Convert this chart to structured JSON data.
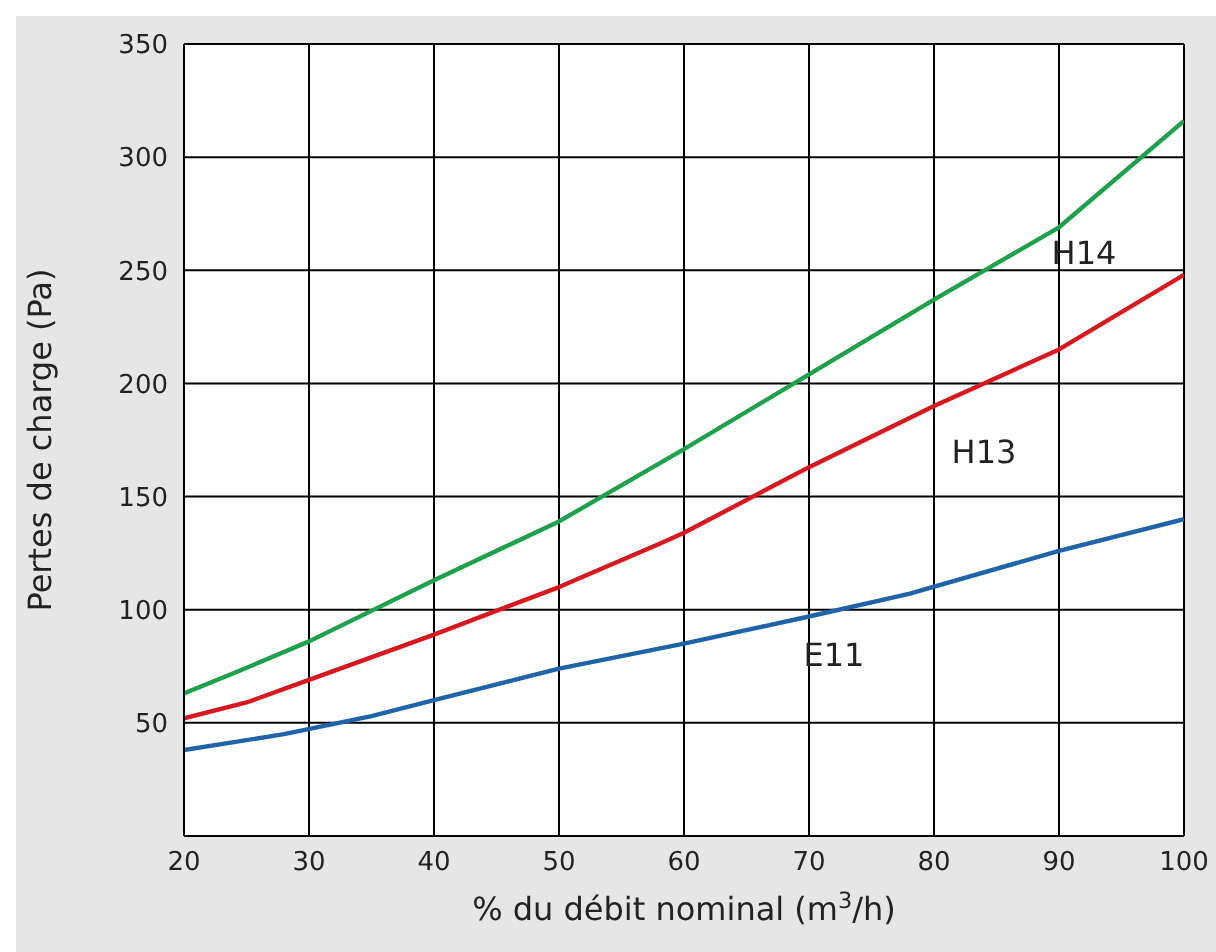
{
  "chart_data": {
    "type": "line",
    "xlabel": "% du débit nominal (m$^{3}$/h)",
    "ylabel": "Pertes de charge (Pa)",
    "xlim": [
      20,
      100
    ],
    "xticks": [
      20,
      30,
      40,
      50,
      60,
      70,
      80,
      90,
      100
    ],
    "ylim": [
      0,
      350
    ],
    "yticks": [
      50,
      100,
      150,
      200,
      250,
      300,
      350
    ],
    "grid": true,
    "legend": false,
    "marker": "none",
    "line_style": "solid",
    "series": [
      {
        "name": "H14",
        "color": "#1ea04c",
        "x": [
          20,
          24,
          30,
          40,
          50,
          60,
          70,
          80,
          90,
          100
        ],
        "values": [
          63,
          72,
          86,
          113,
          139,
          171,
          204,
          237,
          269,
          316
        ]
      },
      {
        "name": "H13",
        "color": "#d7191f",
        "x": [
          20,
          25,
          30,
          40,
          50,
          58,
          60,
          70,
          80,
          90,
          100
        ],
        "values": [
          52,
          59,
          69,
          89,
          110,
          129,
          134,
          163,
          190,
          215,
          248
        ]
      },
      {
        "name": "E11",
        "color": "#1f63a8",
        "x": [
          20,
          28,
          35,
          40,
          50,
          60,
          70,
          78,
          90,
          100
        ],
        "values": [
          38,
          45,
          53,
          60,
          74,
          85,
          97,
          107,
          126,
          140
        ]
      }
    ]
  }
}
